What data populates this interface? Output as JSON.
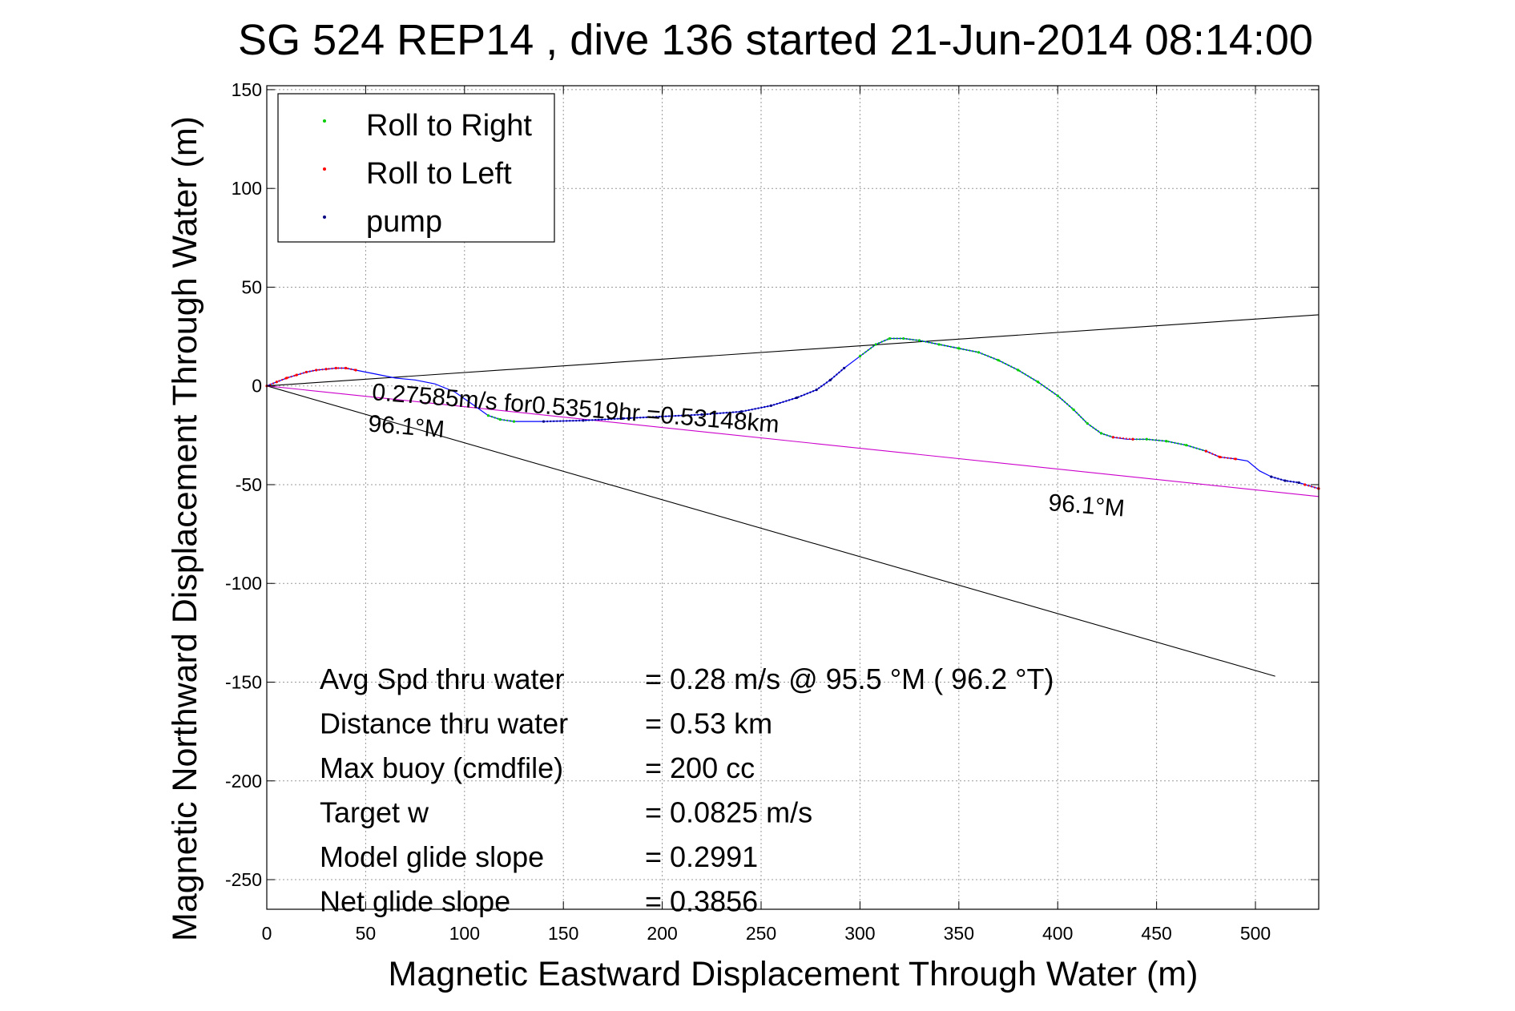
{
  "chart_data": {
    "type": "line",
    "title": "SG 524   REP14  , dive 136 started 21-Jun-2014 08:14:00",
    "xlabel": "Magnetic Eastward Displacement Through Water (m)",
    "ylabel": "Magnetic Northward Displacement Through Water (m)",
    "xlim": [
      0,
      532
    ],
    "ylim": [
      -265,
      152
    ],
    "xticks": [
      0,
      50,
      100,
      150,
      200,
      250,
      300,
      350,
      400,
      450,
      500
    ],
    "yticks": [
      150,
      100,
      50,
      0,
      -50,
      -100,
      -150,
      -200,
      -250
    ],
    "grid": true,
    "legend_position": "top-left",
    "legend": [
      {
        "label": "Roll to Right",
        "color": "#00cc00"
      },
      {
        "label": "Roll to Left",
        "color": "#ff0000"
      },
      {
        "label": "pump",
        "color": "#000080"
      }
    ],
    "track": {
      "color": "#0000ff",
      "points": [
        [
          0,
          0
        ],
        [
          5,
          2
        ],
        [
          10,
          4
        ],
        [
          15,
          5.5
        ],
        [
          20,
          7
        ],
        [
          25,
          8
        ],
        [
          30,
          8.5
        ],
        [
          35,
          9
        ],
        [
          40,
          9
        ],
        [
          45,
          8
        ],
        [
          55,
          6
        ],
        [
          65,
          4
        ],
        [
          75,
          3
        ],
        [
          85,
          1
        ],
        [
          95,
          -3
        ],
        [
          105,
          -10
        ],
        [
          112,
          -15
        ],
        [
          118,
          -17
        ],
        [
          125,
          -18
        ],
        [
          140,
          -18
        ],
        [
          160,
          -17.5
        ],
        [
          180,
          -16.5
        ],
        [
          200,
          -15.5
        ],
        [
          220,
          -14.5
        ],
        [
          240,
          -13
        ],
        [
          255,
          -10
        ],
        [
          268,
          -6
        ],
        [
          278,
          -2
        ],
        [
          285,
          3
        ],
        [
          292,
          9
        ],
        [
          300,
          15
        ],
        [
          308,
          21
        ],
        [
          315,
          24
        ],
        [
          322,
          24
        ],
        [
          330,
          23
        ],
        [
          340,
          21
        ],
        [
          350,
          19
        ],
        [
          360,
          17
        ],
        [
          370,
          13
        ],
        [
          380,
          8
        ],
        [
          390,
          2
        ],
        [
          400,
          -5
        ],
        [
          408,
          -12
        ],
        [
          415,
          -19
        ],
        [
          422,
          -24
        ],
        [
          428,
          -26
        ],
        [
          435,
          -27
        ],
        [
          445,
          -27
        ],
        [
          455,
          -28
        ],
        [
          465,
          -30
        ],
        [
          475,
          -33
        ],
        [
          482,
          -36
        ],
        [
          490,
          -37
        ],
        [
          496,
          -38
        ],
        [
          502,
          -43
        ],
        [
          508,
          -46
        ],
        [
          515,
          -48
        ],
        [
          522,
          -49
        ],
        [
          532,
          -52
        ]
      ]
    },
    "roll_right_segments": [
      [
        [
          300,
          15
        ],
        [
          308,
          21
        ],
        [
          315,
          24
        ],
        [
          322,
          24
        ],
        [
          330,
          23
        ],
        [
          340,
          21
        ],
        [
          350,
          19
        ],
        [
          360,
          17
        ],
        [
          370,
          13
        ],
        [
          380,
          8
        ],
        [
          390,
          2
        ],
        [
          400,
          -5
        ],
        [
          408,
          -12
        ],
        [
          415,
          -19
        ],
        [
          422,
          -24
        ],
        [
          428,
          -26
        ]
      ],
      [
        [
          438,
          -27
        ],
        [
          445,
          -27
        ],
        [
          455,
          -28
        ],
        [
          465,
          -30
        ],
        [
          475,
          -33
        ]
      ],
      [
        [
          112,
          -15
        ],
        [
          118,
          -17
        ],
        [
          125,
          -18
        ]
      ]
    ],
    "roll_left_segments": [
      [
        [
          0,
          0
        ],
        [
          5,
          2
        ],
        [
          10,
          4
        ],
        [
          15,
          5.5
        ],
        [
          20,
          7
        ],
        [
          25,
          8
        ],
        [
          30,
          8.5
        ],
        [
          35,
          9
        ],
        [
          40,
          9
        ],
        [
          45,
          8
        ]
      ],
      [
        [
          428,
          -26
        ],
        [
          438,
          -27
        ]
      ],
      [
        [
          475,
          -33
        ],
        [
          482,
          -36
        ],
        [
          490,
          -37
        ]
      ],
      [
        [
          525,
          -50
        ],
        [
          532,
          -52
        ]
      ]
    ],
    "pump_segments": [
      [
        [
          140,
          -18
        ],
        [
          160,
          -17.5
        ],
        [
          180,
          -16.5
        ],
        [
          200,
          -15.5
        ],
        [
          220,
          -14.5
        ],
        [
          240,
          -13
        ],
        [
          255,
          -10
        ],
        [
          268,
          -6
        ],
        [
          278,
          -2
        ],
        [
          285,
          3
        ],
        [
          292,
          9
        ]
      ],
      [
        [
          508,
          -46
        ],
        [
          515,
          -48
        ],
        [
          522,
          -49
        ]
      ]
    ],
    "reference_lines": [
      {
        "color": "#000000",
        "from": [
          0,
          0
        ],
        "to": [
          532,
          36
        ]
      },
      {
        "color": "#000000",
        "from": [
          0,
          0
        ],
        "to": [
          510,
          -147
        ]
      },
      {
        "color": "#cc00cc",
        "from": [
          0,
          0
        ],
        "to": [
          532,
          -56
        ]
      }
    ],
    "annotations": [
      {
        "text": "0.27585m/s for0.53519hr =0.53148km",
        "x": 53,
        "y": -7,
        "angle": 4.6
      },
      {
        "text": "96.1°M",
        "x": 51,
        "y": -23,
        "angle": 4.6
      },
      {
        "text": "96.1°M",
        "x": 395,
        "y": -63,
        "angle": 4.6
      }
    ],
    "stats": [
      {
        "label": "Avg Spd thru water",
        "value": "=  0.28 m/s @  95.5 °M ( 96.2 °T)"
      },
      {
        "label": "Distance thru water",
        "value": "=  0.53 km"
      },
      {
        "label": "Max buoy (cmdfile)",
        "value": "= 200 cc"
      },
      {
        "label": "Target w",
        "value": "= 0.0825 m/s"
      },
      {
        "label": "Model glide slope",
        "value": "= 0.2991"
      },
      {
        "label": "Net glide slope",
        "value": "= 0.3856"
      }
    ]
  }
}
